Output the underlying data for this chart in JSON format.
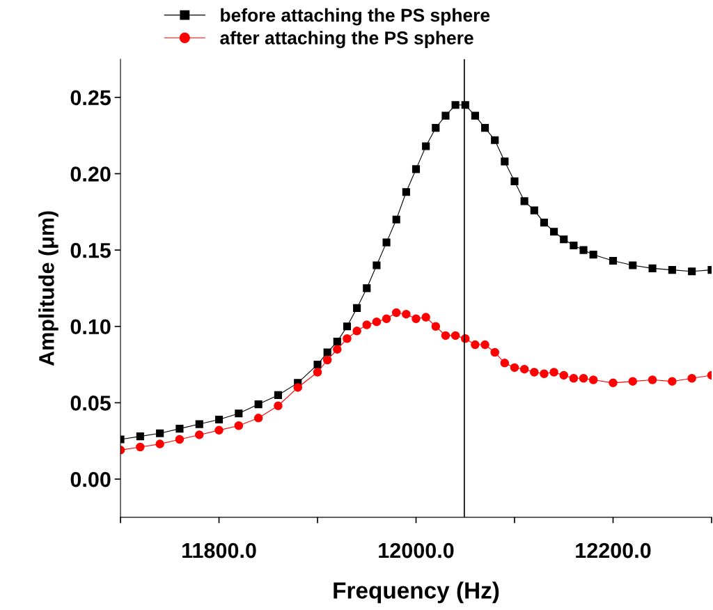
{
  "chart_data": {
    "type": "line",
    "xlabel": "Frequency (Hz)",
    "ylabel": "Amplitude (μm)",
    "xlim": [
      11700,
      12300
    ],
    "ylim": [
      -0.025,
      0.275
    ],
    "xticks": [
      {
        "value": 11700,
        "label": null
      },
      {
        "value": 11800,
        "label": "11800.0"
      },
      {
        "value": 11900,
        "label": null
      },
      {
        "value": 12000,
        "label": "12000.0"
      },
      {
        "value": 12100,
        "label": null
      },
      {
        "value": 12200,
        "label": "12200.0"
      },
      {
        "value": 12300,
        "label": null
      }
    ],
    "yticks": [
      {
        "value": 0,
        "label": "0.00"
      },
      {
        "value": 0.05,
        "label": "0.05"
      },
      {
        "value": 0.1,
        "label": "0.10"
      },
      {
        "value": 0.15,
        "label": "0.15"
      },
      {
        "value": 0.2,
        "label": "0.20"
      },
      {
        "value": 0.25,
        "label": "0.25"
      }
    ],
    "grid": false,
    "legend": "top",
    "line_style": "solid",
    "ref_lines": [
      {
        "axis": "x",
        "value": 12049,
        "color": "#000000"
      }
    ],
    "series": [
      {
        "name": "before attaching the PS sphere",
        "color": "#000000",
        "marker": "square",
        "x": [
          11700,
          11720,
          11740,
          11760,
          11780,
          11800,
          11820,
          11840,
          11860,
          11880,
          11900,
          11910,
          11920,
          11930,
          11940,
          11950,
          11960,
          11970,
          11980,
          11990,
          12000,
          12010,
          12020,
          12030,
          12040,
          12050,
          12060,
          12070,
          12080,
          12090,
          12100,
          12110,
          12120,
          12130,
          12140,
          12150,
          12160,
          12170,
          12180,
          12200,
          12220,
          12240,
          12260,
          12280,
          12300
        ],
        "values": [
          0.026,
          0.028,
          0.03,
          0.033,
          0.036,
          0.039,
          0.043,
          0.049,
          0.055,
          0.063,
          0.075,
          0.083,
          0.09,
          0.1,
          0.112,
          0.125,
          0.14,
          0.155,
          0.17,
          0.188,
          0.203,
          0.218,
          0.23,
          0.238,
          0.245,
          0.245,
          0.238,
          0.23,
          0.222,
          0.208,
          0.195,
          0.182,
          0.176,
          0.168,
          0.162,
          0.157,
          0.153,
          0.15,
          0.147,
          0.143,
          0.14,
          0.138,
          0.137,
          0.136,
          0.137
        ]
      },
      {
        "name": "after attaching the PS sphere",
        "color": "#ff0000",
        "marker": "circle",
        "x": [
          11700,
          11720,
          11740,
          11760,
          11780,
          11800,
          11820,
          11840,
          11860,
          11880,
          11900,
          11910,
          11920,
          11930,
          11940,
          11950,
          11960,
          11970,
          11980,
          11990,
          12000,
          12010,
          12020,
          12030,
          12040,
          12050,
          12060,
          12070,
          12080,
          12090,
          12100,
          12110,
          12120,
          12130,
          12140,
          12150,
          12160,
          12170,
          12180,
          12200,
          12220,
          12240,
          12260,
          12280,
          12300
        ],
        "values": [
          0.019,
          0.021,
          0.023,
          0.026,
          0.029,
          0.032,
          0.035,
          0.04,
          0.048,
          0.06,
          0.07,
          0.078,
          0.085,
          0.092,
          0.097,
          0.101,
          0.103,
          0.105,
          0.109,
          0.108,
          0.105,
          0.106,
          0.1,
          0.094,
          0.094,
          0.092,
          0.088,
          0.088,
          0.083,
          0.076,
          0.073,
          0.072,
          0.07,
          0.069,
          0.07,
          0.068,
          0.066,
          0.066,
          0.065,
          0.063,
          0.064,
          0.065,
          0.064,
          0.066,
          0.068
        ]
      }
    ]
  }
}
